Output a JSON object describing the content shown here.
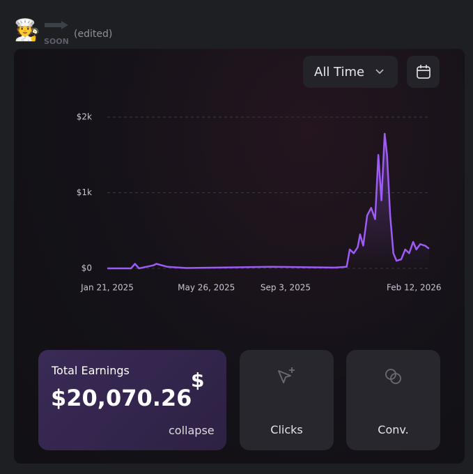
{
  "header": {
    "badge": "SOON",
    "edited": "(edited)"
  },
  "controls": {
    "range": "All Time"
  },
  "chart_data": {
    "type": "line",
    "x": [
      "2025-01-21",
      "2025-02-20",
      "2025-02-25",
      "2025-03-02",
      "2025-03-20",
      "2025-03-24",
      "2025-04-07",
      "2025-05-01",
      "2025-08-17",
      "2025-11-04",
      "2025-11-19",
      "2025-11-23",
      "2025-11-28",
      "2025-12-03",
      "2025-12-06",
      "2025-12-10",
      "2025-12-15",
      "2025-12-20",
      "2025-12-25",
      "2025-12-29",
      "2026-01-02",
      "2026-01-06",
      "2026-01-09",
      "2026-01-13",
      "2026-01-17",
      "2026-01-21",
      "2026-01-27",
      "2026-02-01",
      "2026-02-06",
      "2026-02-11",
      "2026-02-15",
      "2026-02-20",
      "2026-02-26",
      "2026-03-03"
    ],
    "series": [
      {
        "name": "Earnings",
        "color": "#9d5cf6",
        "values": [
          0,
          0,
          60,
          0,
          40,
          60,
          20,
          5,
          20,
          10,
          20,
          250,
          200,
          280,
          450,
          300,
          700,
          800,
          650,
          1500,
          900,
          1780,
          1500,
          700,
          200,
          100,
          120,
          250,
          200,
          350,
          250,
          320,
          300,
          260
        ]
      }
    ],
    "xlim": [
      "2025-01-21",
      "2026-03-04"
    ],
    "xticks": [
      {
        "value": "2025-01-21",
        "label": "Jan 21, 2025"
      },
      {
        "value": "2025-05-26",
        "label": "May 26, 2025"
      },
      {
        "value": "2025-09-03",
        "label": "Sep 3, 2025"
      },
      {
        "value": "2026-02-12",
        "label": "Feb 12, 2026"
      }
    ],
    "ylim": [
      0,
      2000
    ],
    "yticks": [
      {
        "value": 0,
        "label": "$0"
      },
      {
        "value": 1000,
        "label": "$1k"
      },
      {
        "value": 2000,
        "label": "$2k"
      }
    ],
    "grid": true
  },
  "cards": {
    "earnings_title": "Total Earnings",
    "earnings_value": "$20,070.26",
    "currency": "$",
    "toggle": "collapse",
    "clicks": "Clicks",
    "conversions": "Conv."
  }
}
